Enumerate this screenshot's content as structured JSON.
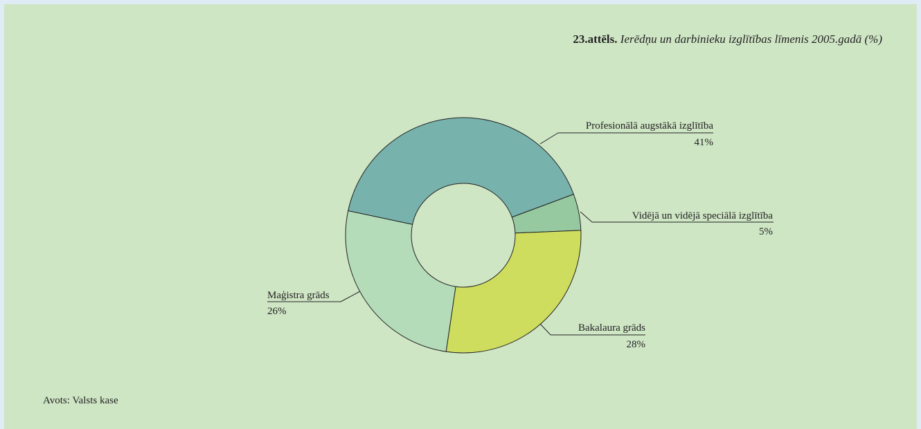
{
  "chart_data": {
    "type": "donut",
    "figure_number": "23.attēls.",
    "title": "Ierēdņu un darbinieku izglītības līmenis 2005.gadā (%)",
    "categories": [
      "Profesionālā augstākā izglītība",
      "Vidējā un vidējā speciālā izglītība",
      "Bakalaura grāds",
      "Maģistra grāds"
    ],
    "values": [
      41,
      5,
      28,
      26
    ],
    "value_labels": [
      "41%",
      "5%",
      "28%",
      "26%"
    ],
    "colors": [
      "#78b2ac",
      "#96c9a0",
      "#cfdd5f",
      "#b4dcb9"
    ],
    "source": "Avots: Valsts kase"
  }
}
